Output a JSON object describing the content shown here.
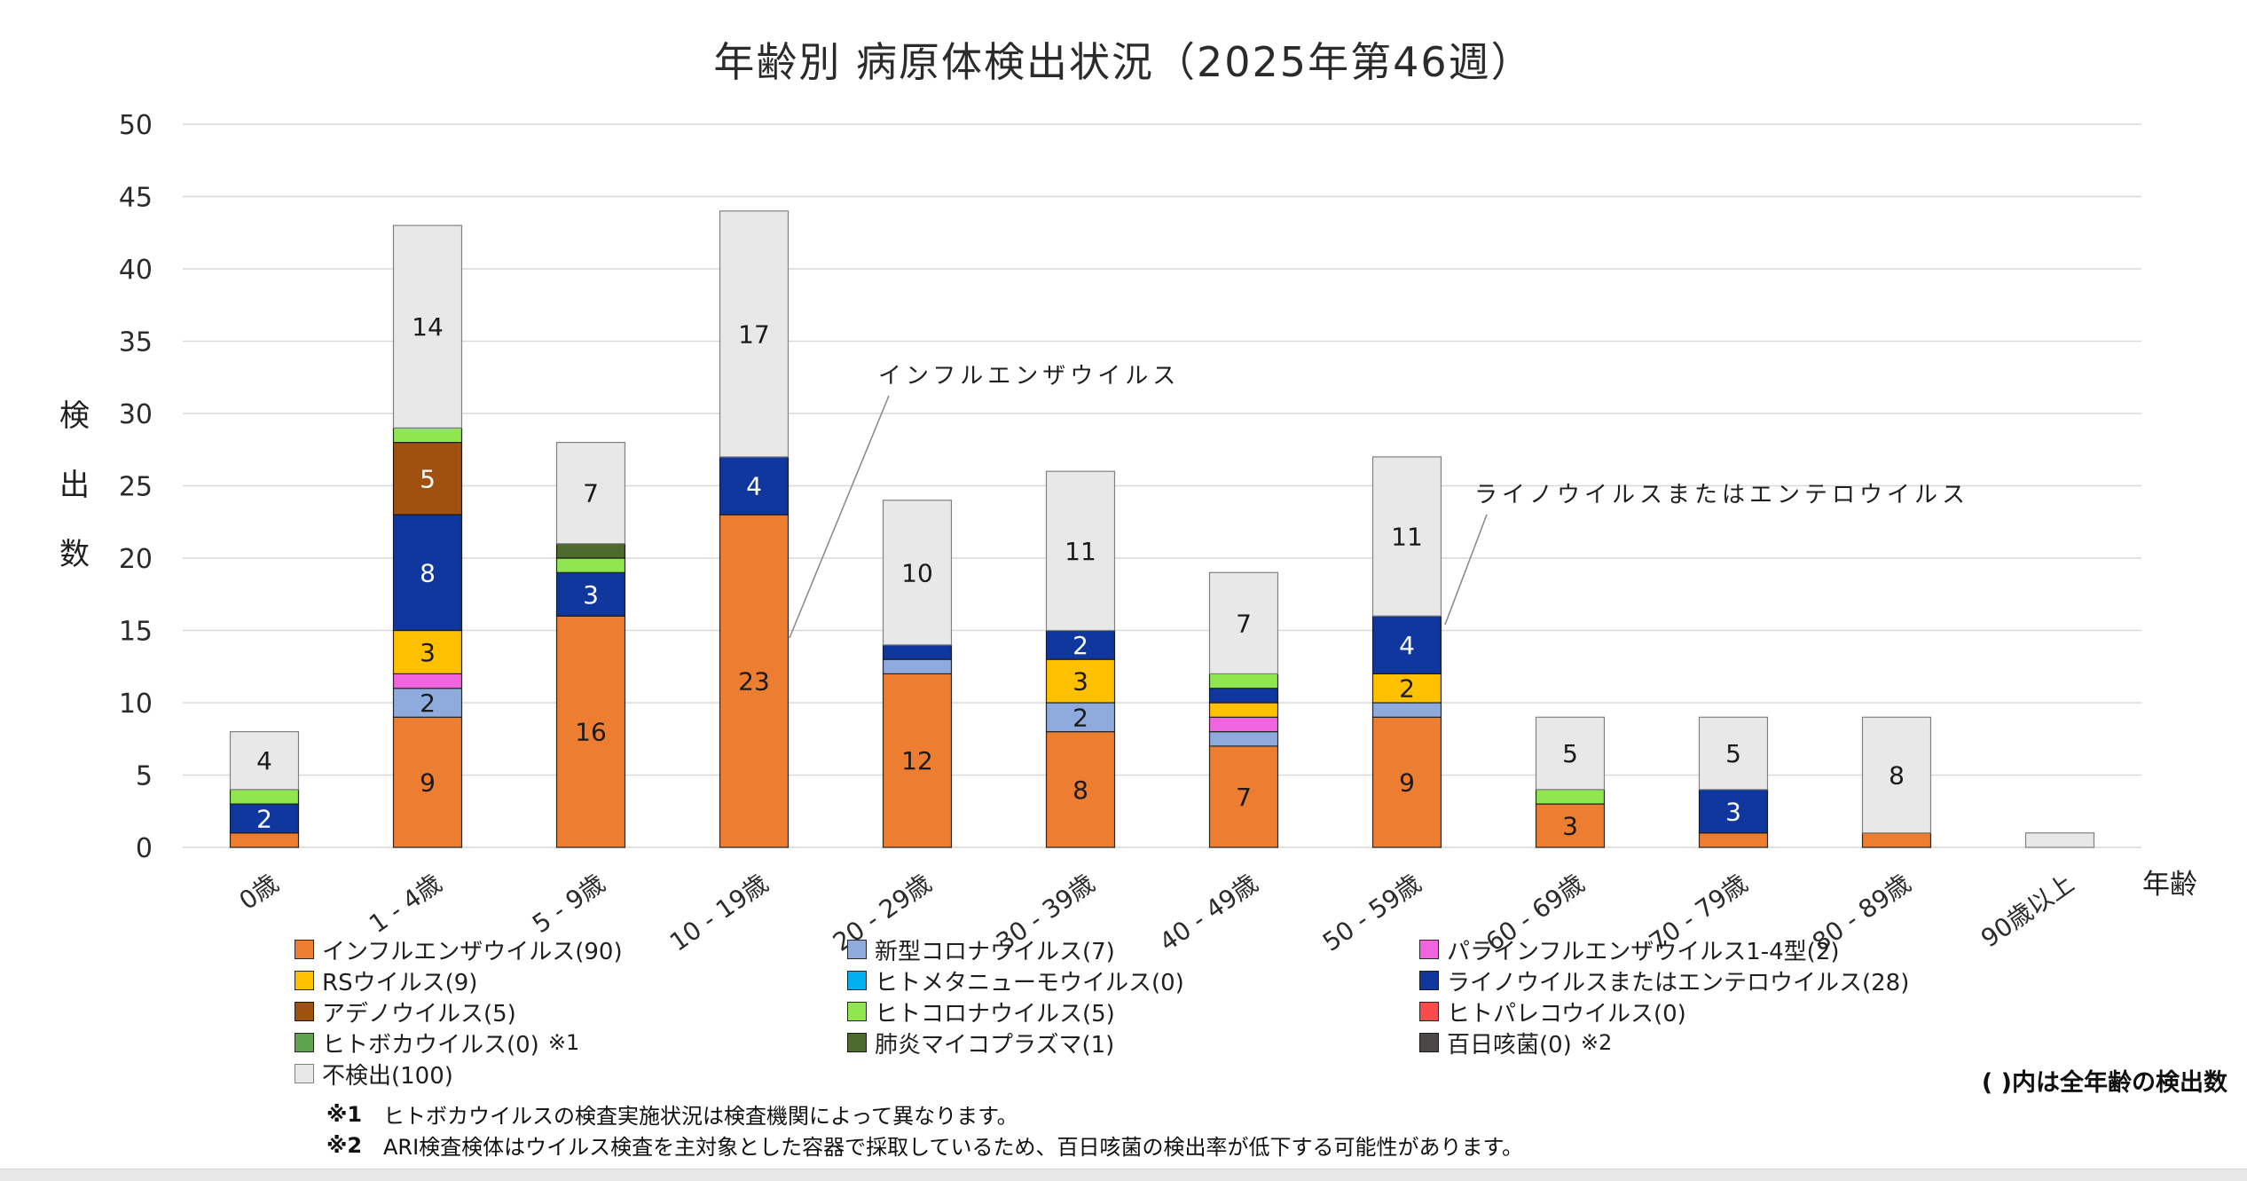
{
  "title": "年齢別 病原体検出状況（2025年第46週）",
  "chart_data": {
    "type": "bar",
    "stacked": true,
    "title": "年齢別 病原体検出状況（2025年第46週）",
    "xlabel": "年齢",
    "ylabel": "検出数",
    "ylim": [
      0,
      50
    ],
    "ytick_step": 5,
    "grid": true,
    "legend_position": "bottom",
    "legend_note": "( )内は全年齢の検出数",
    "categories": [
      "0歳",
      "1 - 4歳",
      "5 - 9歳",
      "10 - 19歳",
      "20 - 29歳",
      "30 - 39歳",
      "40 - 49歳",
      "50 - 59歳",
      "60 - 69歳",
      "70 - 79歳",
      "80 - 89歳",
      "90歳以上"
    ],
    "series": [
      {
        "name": "インフルエンザウイルス",
        "total": 90,
        "color": "#ED7D31",
        "border": "#262626",
        "label_color": "#1a1a1a",
        "values": [
          1,
          9,
          16,
          23,
          12,
          8,
          7,
          9,
          3,
          1,
          1,
          0
        ]
      },
      {
        "name": "新型コロナウイルス",
        "total": 7,
        "color": "#8FAADC",
        "border": "#262626",
        "label_color": "#1a1a1a",
        "values": [
          0,
          2,
          0,
          0,
          1,
          2,
          1,
          1,
          0,
          0,
          0,
          0
        ]
      },
      {
        "name": "パラインフルエンザウイルス1-4型",
        "total": 2,
        "color": "#F064DE",
        "border": "#262626",
        "label_color": "#1a1a1a",
        "values": [
          0,
          1,
          0,
          0,
          0,
          0,
          1,
          0,
          0,
          0,
          0,
          0
        ]
      },
      {
        "name": "RSウイルス",
        "total": 9,
        "color": "#FFC000",
        "border": "#262626",
        "label_color": "#1a1a1a",
        "values": [
          0,
          3,
          0,
          0,
          0,
          3,
          1,
          2,
          0,
          0,
          0,
          0
        ]
      },
      {
        "name": "ヒトメタニューモウイルス",
        "total": 0,
        "color": "#00B0F0",
        "border": "#262626",
        "label_color": "#1a1a1a",
        "values": [
          0,
          0,
          0,
          0,
          0,
          0,
          0,
          0,
          0,
          0,
          0,
          0
        ]
      },
      {
        "name": "ライノウイルスまたはエンテロウイルス",
        "total": 28,
        "color": "#10379E",
        "border": "#1a1a1a",
        "label_color": "#ffffff",
        "values": [
          2,
          8,
          3,
          4,
          1,
          2,
          1,
          4,
          0,
          3,
          0,
          0
        ]
      },
      {
        "name": "アデノウイルス",
        "total": 5,
        "color": "#A0500F",
        "border": "#1a1a1a",
        "label_color": "#ffffff",
        "values": [
          0,
          5,
          0,
          0,
          0,
          0,
          0,
          0,
          0,
          0,
          0,
          0
        ]
      },
      {
        "name": "ヒトコロナウイルス",
        "total": 5,
        "color": "#90E64F",
        "border": "#262626",
        "label_color": "#1a1a1a",
        "values": [
          1,
          1,
          1,
          0,
          0,
          0,
          1,
          0,
          1,
          0,
          0,
          0
        ]
      },
      {
        "name": "ヒトパレコウイルス",
        "total": 0,
        "color": "#F94B4B",
        "border": "#262626",
        "label_color": "#1a1a1a",
        "values": [
          0,
          0,
          0,
          0,
          0,
          0,
          0,
          0,
          0,
          0,
          0,
          0
        ]
      },
      {
        "name": "ヒトボカウイルス",
        "total": 0,
        "color": "#5DA24C",
        "border": "#262626",
        "label_color": "#1a1a1a",
        "legend_suffix": "※1",
        "values": [
          0,
          0,
          0,
          0,
          0,
          0,
          0,
          0,
          0,
          0,
          0,
          0
        ]
      },
      {
        "name": "肺炎マイコプラズマ",
        "total": 1,
        "color": "#4C6B2C",
        "border": "#1a1a1a",
        "label_color": "#ffffff",
        "values": [
          0,
          0,
          1,
          0,
          0,
          0,
          0,
          0,
          0,
          0,
          0,
          0
        ]
      },
      {
        "name": "百日咳菌",
        "total": 0,
        "color": "#4C4848",
        "border": "#1a1a1a",
        "label_color": "#ffffff",
        "legend_suffix": "※2",
        "values": [
          0,
          0,
          0,
          0,
          0,
          0,
          0,
          0,
          0,
          0,
          0,
          0
        ]
      },
      {
        "name": "不検出",
        "total": 100,
        "color": "#E9E8E8",
        "border": "#818181",
        "label_color": "#1a1a1a",
        "values": [
          4,
          14,
          7,
          17,
          10,
          11,
          7,
          11,
          5,
          5,
          8,
          1
        ]
      }
    ],
    "annotations": [
      {
        "text": "インフルエンザウイルス",
        "target_series": "インフルエンザウイルス",
        "target_category": "10 - 19歳"
      },
      {
        "text": "ライノウイルスまたはエンテロウイルス",
        "target_series": "ライノウイルスまたはエンテロウイルス",
        "target_category": "50 - 59歳"
      }
    ],
    "footnotes": [
      {
        "marker": "※1",
        "text": "ヒトボカウイルスの検査実施状況は検査機関によって異なります。"
      },
      {
        "marker": "※2",
        "text": "ARI検査検体はウイルス検査を主対象とした容器で採取しているため、百日咳菌の検出率が低下する可能性があります。"
      }
    ]
  }
}
